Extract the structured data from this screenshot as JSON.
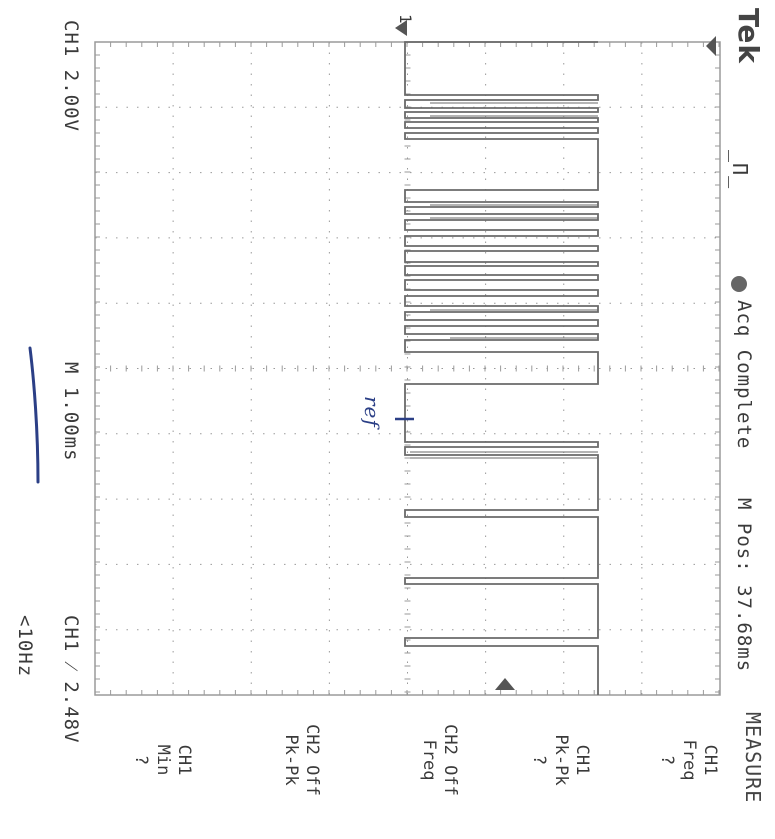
{
  "header": {
    "brand": "Tek",
    "trigger_symbol": "_Π_",
    "acq_status": "Acq Complete",
    "position": "M Pos: 37.68ms"
  },
  "footer": {
    "ch1_scale": "CH1  2.00V",
    "timebase": "M 1.00ms",
    "trigger_level": "CH1 ⁄ 2.48V",
    "trigger_freq": "<10Hz"
  },
  "markers": {
    "channel": "1",
    "reference_note": "ref"
  },
  "measure_menu": {
    "title": "MEASURE",
    "items": [
      {
        "line1": "CH1",
        "line2": "Freq",
        "value": "?"
      },
      {
        "line1": "CH1",
        "line2": "Pk-Pk",
        "value": "?"
      },
      {
        "line1": "CH2 Off",
        "line2": "Freq",
        "value": ""
      },
      {
        "line1": "CH2 Off",
        "line2": "Pk-Pk",
        "value": ""
      },
      {
        "line1": "CH1",
        "line2": "Min",
        "value": "?"
      }
    ]
  },
  "colors": {
    "trace": "#6a6a6a",
    "grid": "#9a9a9a",
    "annotation": "#2b3f86"
  }
}
